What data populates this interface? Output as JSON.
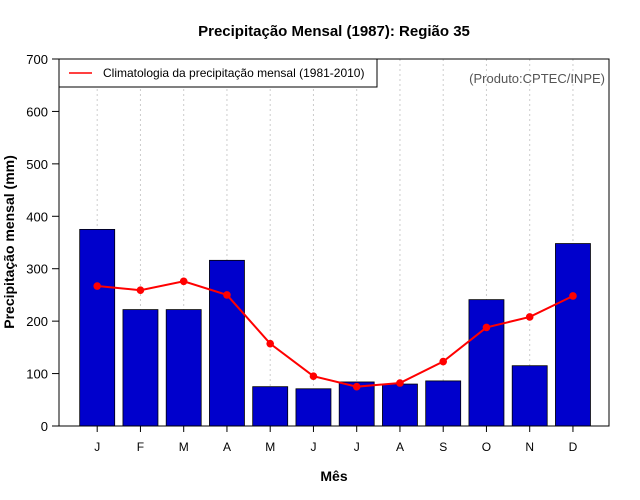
{
  "chart_data": {
    "type": "bar",
    "title": "Precipitação Mensal (1987): Região 35",
    "xlabel": "Mês",
    "ylabel": "Precipitação mensal (mm)",
    "ylim": [
      0,
      700
    ],
    "yticks": [
      0,
      100,
      200,
      300,
      400,
      500,
      600,
      700
    ],
    "categories": [
      "J",
      "F",
      "M",
      "A",
      "M",
      "J",
      "J",
      "A",
      "S",
      "O",
      "N",
      "D"
    ],
    "series": [
      {
        "name": "Precipitação mensal (1987)",
        "type": "bar",
        "color": "#0000cc",
        "values": [
          375,
          222,
          222,
          316,
          75,
          71,
          84,
          80,
          86,
          241,
          115,
          348
        ]
      },
      {
        "name": "Climatologia da precipitação mensal (1981-2010)",
        "type": "line",
        "color": "#ff0000",
        "values": [
          267,
          259,
          276,
          250,
          157,
          95,
          75,
          82,
          123,
          188,
          208,
          248
        ]
      }
    ],
    "legend": {
      "position": "top-left",
      "entries": [
        "Climatologia da precipitação mensal (1981-2010)"
      ]
    },
    "annotation": "(Produto:CPTEC/INPE)",
    "grid": "vertical-dotted"
  }
}
